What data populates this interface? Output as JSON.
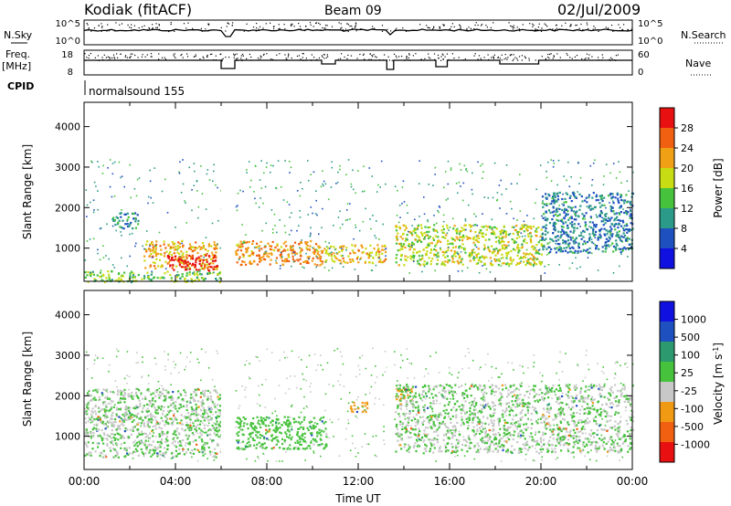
{
  "header": {
    "station": "Kodiak (fitACF)",
    "beam": "Beam 09",
    "date": "02/Jul/2009"
  },
  "housekeeping": {
    "nsky_label": "N.Sky",
    "nsearch_label": "N.Search",
    "freq_label_line1": "Freq.",
    "freq_label_line2": "[MHz]",
    "nave_label": "Nave",
    "cpid_label": "CPID",
    "cpid_value": "normalsound 155",
    "nsky_ticks": [
      "10^5",
      "10^0"
    ],
    "nsearch_ticks": [
      "10^5",
      "10^0"
    ],
    "freq_ticks": [
      "18",
      "8"
    ],
    "nave_ticks": [
      "60",
      "0"
    ]
  },
  "chart_data": [
    {
      "type": "heatmap",
      "title": "",
      "ylabel": "Slant Range [km]",
      "xlabel": "",
      "xlim": [
        "00:00",
        "24:00"
      ],
      "ylim": [
        180,
        4600
      ],
      "yticks": [
        "1000",
        "2000",
        "3000",
        "4000"
      ],
      "colorbar": {
        "label": "Power [dB]",
        "ticks": [
          "4",
          "8",
          "12",
          "16",
          "20",
          "24",
          "28"
        ],
        "range": [
          0,
          30
        ],
        "colors": [
          "#1010e0",
          "#1e50c0",
          "#2c9a88",
          "#46c23c",
          "#c8dc14",
          "#f0a014",
          "#f06010",
          "#e81010"
        ]
      },
      "echo_regions": [
        {
          "t0": 0.0,
          "t1": 6.0,
          "r0": 180,
          "r1": 450,
          "value": 14
        },
        {
          "t0": 1.2,
          "t1": 2.4,
          "r0": 1500,
          "r1": 1900,
          "value": 9
        },
        {
          "t0": 2.6,
          "t1": 5.8,
          "r0": 500,
          "r1": 1200,
          "value": 20
        },
        {
          "t0": 3.6,
          "t1": 5.8,
          "r0": 450,
          "r1": 850,
          "value": 28
        },
        {
          "t0": 6.6,
          "t1": 10.4,
          "r0": 600,
          "r1": 1200,
          "value": 22
        },
        {
          "t0": 10.4,
          "t1": 13.4,
          "r0": 650,
          "r1": 1100,
          "value": 19
        },
        {
          "t0": 13.6,
          "t1": 20.0,
          "r0": 600,
          "r1": 1600,
          "value": 17
        },
        {
          "t0": 20.0,
          "t1": 24.0,
          "r0": 900,
          "r1": 2400,
          "value": 8
        }
      ]
    },
    {
      "type": "heatmap",
      "title": "",
      "ylabel": "Slant Range [km]",
      "xlabel": "Time UT",
      "xlim": [
        "00:00",
        "24:00"
      ],
      "ylim": [
        180,
        4600
      ],
      "xticks": [
        "00:00",
        "04:00",
        "08:00",
        "12:00",
        "16:00",
        "20:00",
        "00:00"
      ],
      "yticks": [
        "1000",
        "2000",
        "3000",
        "4000"
      ],
      "colorbar": {
        "label": "Velocity [m s^-1]",
        "ticks": [
          "1000",
          "500",
          "100",
          "25",
          "-25",
          "-100",
          "-500",
          "-1000"
        ],
        "range": [
          -1000,
          1000
        ],
        "colors": [
          "#e81010",
          "#f06010",
          "#f09a14",
          "#c8c8c8",
          "#46c23c",
          "#2c9a6e",
          "#1e50c0",
          "#1010e0"
        ]
      },
      "echo_regions": [
        {
          "t0": 0.0,
          "t1": 6.0,
          "r0": 500,
          "r1": 2200,
          "value": 0
        },
        {
          "t0": 6.6,
          "t1": 10.6,
          "r0": 700,
          "r1": 1500,
          "value": 60
        },
        {
          "t0": 11.6,
          "t1": 12.4,
          "r0": 1600,
          "r1": 1900,
          "value": -300
        },
        {
          "t0": 13.6,
          "t1": 14.4,
          "r0": 1900,
          "r1": 2200,
          "value": -300
        },
        {
          "t0": 13.6,
          "t1": 24.0,
          "r0": 600,
          "r1": 2300,
          "value": 0
        }
      ]
    }
  ],
  "colors": {
    "gray_scatter": "#c8c8c8",
    "axis": "#000000"
  }
}
